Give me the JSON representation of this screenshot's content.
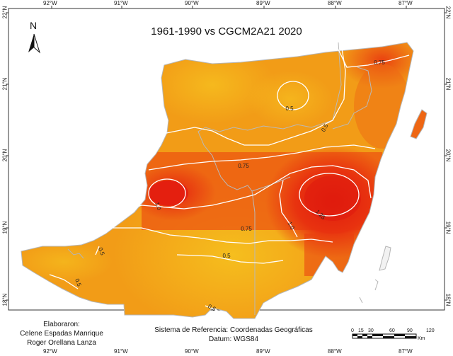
{
  "title": "1961-1990 vs CGCM2A21 2020",
  "north_arrow": {
    "label": "N",
    "icon": "north-arrow-icon"
  },
  "credits": {
    "heading": "Elaboraron:",
    "author1": "Celene Espadas Manrique",
    "author2": "Roger Orellana Lanza"
  },
  "reference": {
    "system": "Sistema de Referencia: Coordenadas Geográficas",
    "datum": "Datum: WGS84"
  },
  "scale_bar": {
    "ticks": [
      "0",
      "15",
      "30",
      "60",
      "90",
      "120"
    ],
    "unit": "Km"
  },
  "longitudes_top": [
    "92°W",
    "91°W",
    "90°W",
    "89°W",
    "88°W",
    "87°W"
  ],
  "longitudes_bottom": [
    "92°W",
    "91°W",
    "90°W",
    "89°W",
    "88°W",
    "87°W"
  ],
  "latitudes": [
    "22°N",
    "21°N",
    "20°N",
    "19°N",
    "18°N"
  ],
  "contour_labels": [
    "0.75",
    "0.5",
    "0.5",
    "0.75",
    "1.0",
    "1.0",
    "1.25",
    "0.75",
    "0.5",
    "0.5",
    "0.5",
    "0.5"
  ],
  "colors": {
    "low": "#f7c21e",
    "mid": "#f29a16",
    "high": "#ec5a12",
    "peak": "#e5230f",
    "contour": "#ffffff",
    "boundary": "#b5b5b5",
    "frame": "#333333"
  }
}
